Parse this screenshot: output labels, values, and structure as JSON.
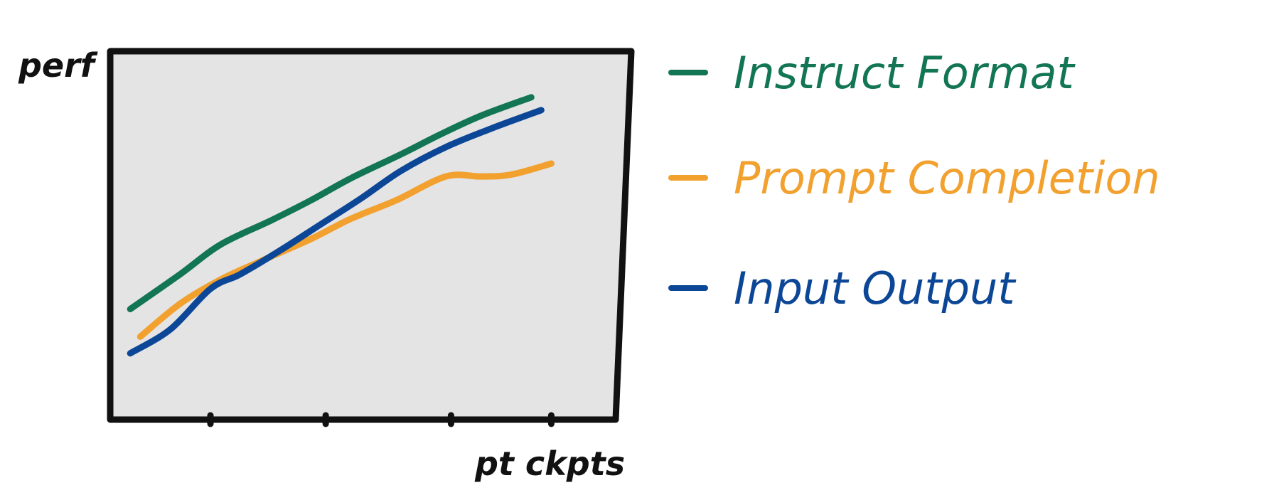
{
  "chart_data": {
    "type": "line",
    "title": "",
    "xlabel": "pt ckpts",
    "ylabel": "perf",
    "xlim": [
      0,
      5
    ],
    "ylim": [
      0,
      10
    ],
    "x_ticks": [
      1,
      2.15,
      3.4,
      4.4
    ],
    "grid": false,
    "legend_position": "right",
    "series": [
      {
        "name": "Instruct Format",
        "color": "#127554",
        "x": [
          0.2,
          0.7,
          1.1,
          1.6,
          2.0,
          2.4,
          2.9,
          3.3,
          3.7,
          4.2
        ],
        "y": [
          3.0,
          3.95,
          4.75,
          5.4,
          5.95,
          6.55,
          7.2,
          7.75,
          8.25,
          8.75
        ]
      },
      {
        "name": "Prompt Completion",
        "color": "#F2A02E",
        "x": [
          0.3,
          0.7,
          1.1,
          1.5,
          2.0,
          2.4,
          2.85,
          3.35,
          3.7,
          4.0,
          4.4
        ],
        "y": [
          2.25,
          3.15,
          3.8,
          4.3,
          4.9,
          5.45,
          5.95,
          6.6,
          6.6,
          6.65,
          6.95
        ]
      },
      {
        "name": "Input Output",
        "color": "#0C4696",
        "x": [
          0.2,
          0.6,
          1.0,
          1.3,
          1.7,
          2.1,
          2.5,
          2.9,
          3.35,
          3.8,
          4.3
        ],
        "y": [
          1.8,
          2.45,
          3.55,
          3.95,
          4.6,
          5.3,
          6.0,
          6.75,
          7.4,
          7.9,
          8.4
        ]
      }
    ]
  }
}
